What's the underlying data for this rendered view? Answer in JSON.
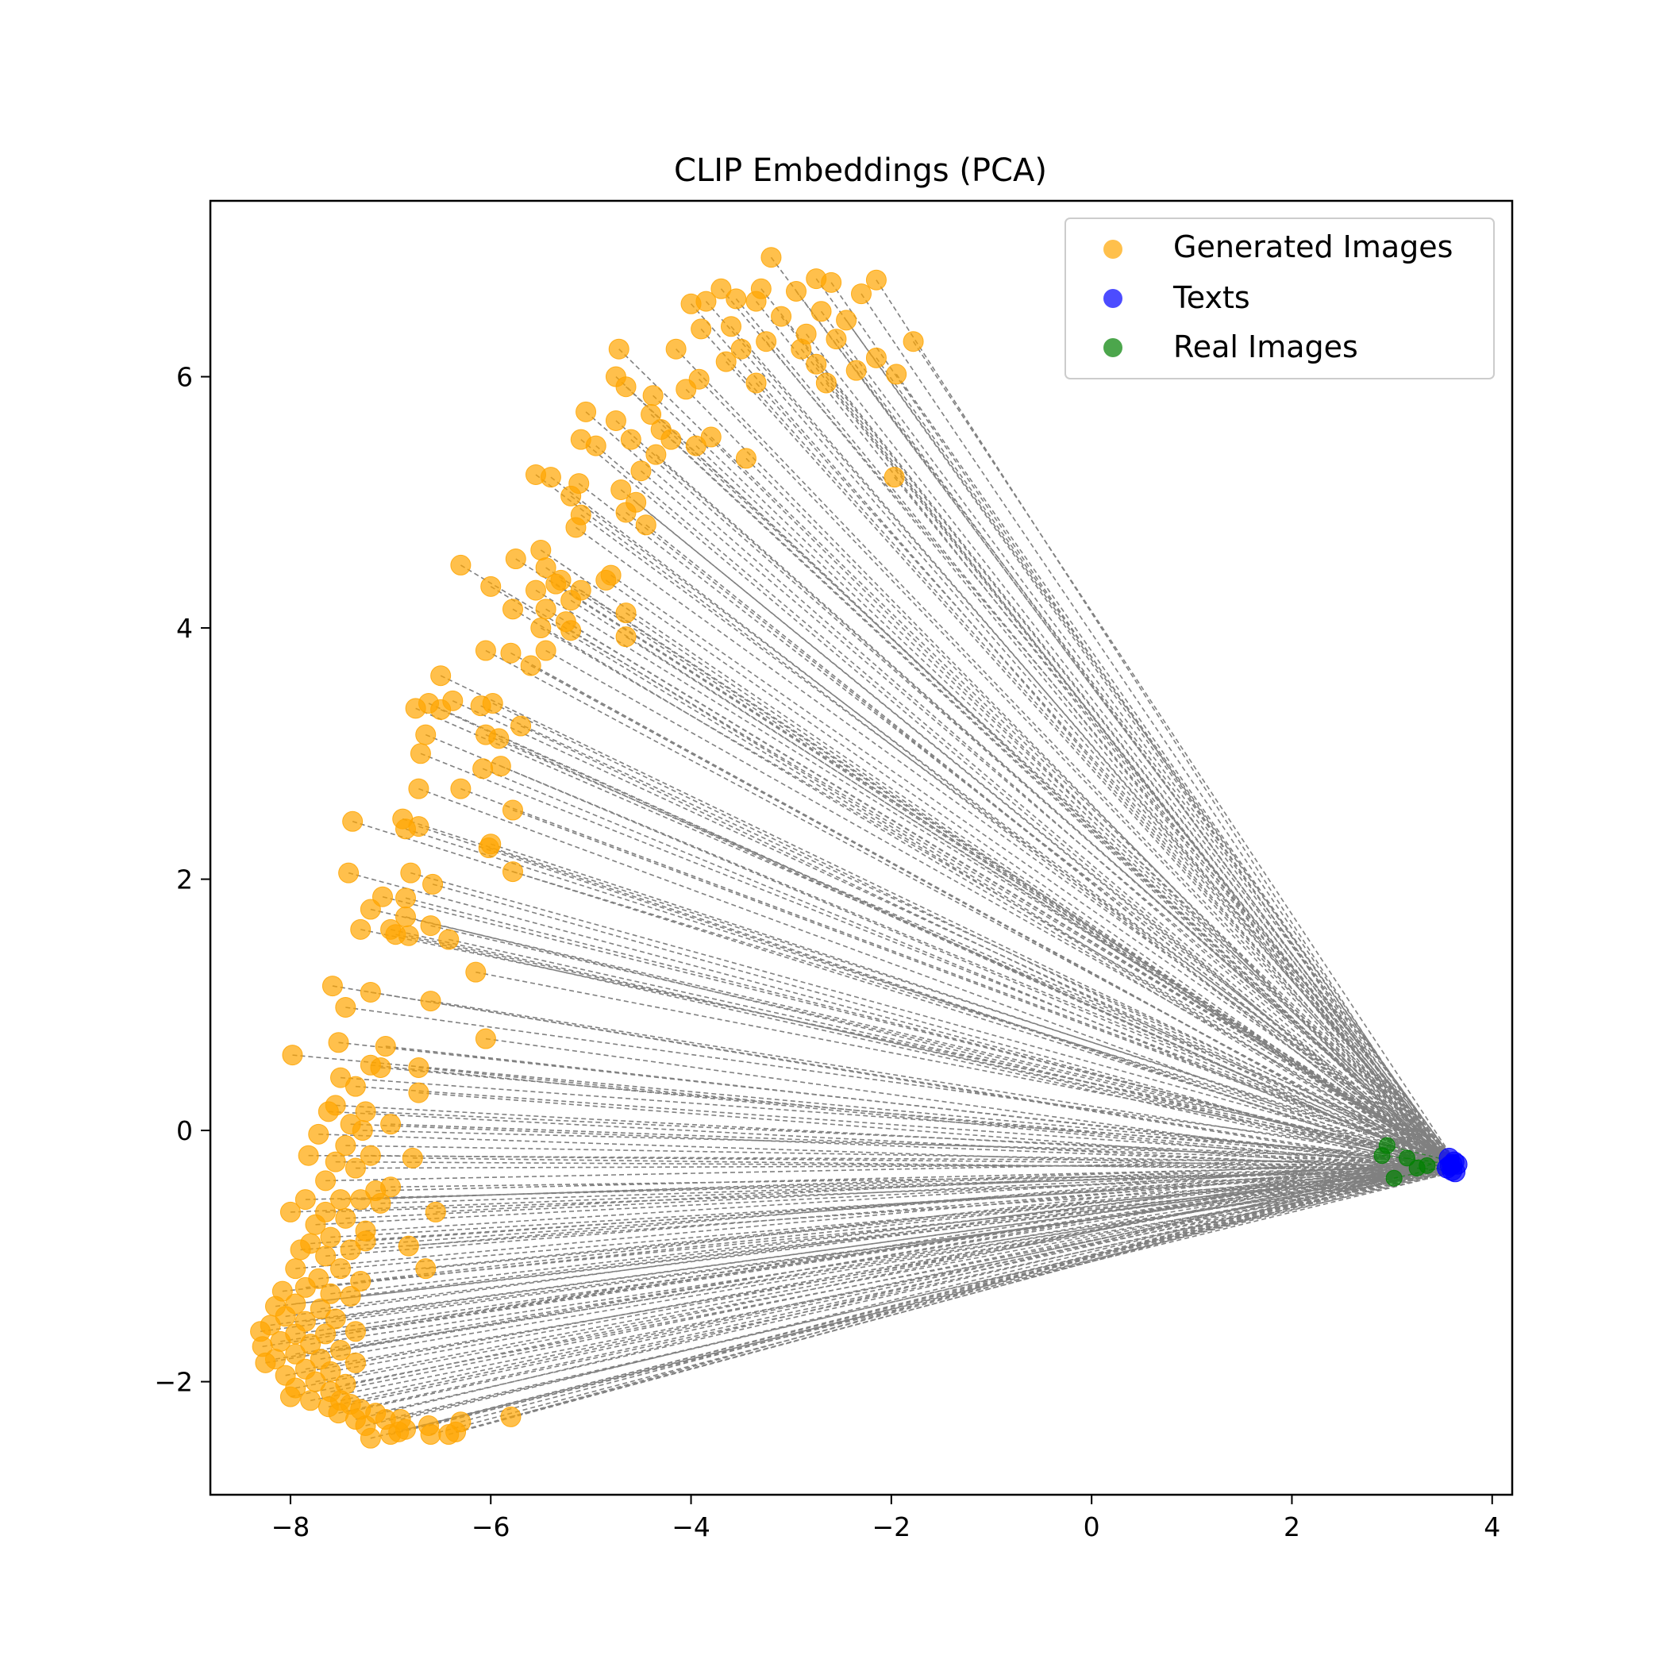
{
  "chart_data": {
    "type": "scatter",
    "title": "CLIP Embeddings (PCA)",
    "xlabel": "",
    "ylabel": "",
    "xlim": [
      -8.8,
      4.2
    ],
    "ylim": [
      -2.9,
      7.4
    ],
    "x_ticks": [
      -8,
      -6,
      -4,
      -2,
      0,
      2,
      4
    ],
    "x_tick_labels": [
      "−8",
      "−6",
      "−4",
      "−2",
      "0",
      "2",
      "4"
    ],
    "y_ticks": [
      -2,
      0,
      2,
      4,
      6
    ],
    "y_tick_labels": [
      "−2",
      "0",
      "2",
      "4",
      "6"
    ],
    "grid": false,
    "legend_position": "upper right",
    "series": [
      {
        "name": "Generated Images",
        "color": "#FFA500",
        "alpha": 0.7,
        "points": [
          [
            -3.2,
            6.95
          ],
          [
            -2.75,
            6.78
          ],
          [
            -2.15,
            6.77
          ],
          [
            -2.6,
            6.75
          ],
          [
            -3.7,
            6.7
          ],
          [
            -3.3,
            6.7
          ],
          [
            -2.95,
            6.68
          ],
          [
            -2.3,
            6.66
          ],
          [
            -3.55,
            6.62
          ],
          [
            -3.85,
            6.6
          ],
          [
            -4.0,
            6.58
          ],
          [
            -3.35,
            6.6
          ],
          [
            -2.7,
            6.52
          ],
          [
            -3.1,
            6.48
          ],
          [
            -2.45,
            6.45
          ],
          [
            -3.6,
            6.4
          ],
          [
            -3.9,
            6.38
          ],
          [
            -2.85,
            6.34
          ],
          [
            -2.55,
            6.3
          ],
          [
            -3.25,
            6.28
          ],
          [
            -1.78,
            6.28
          ],
          [
            -4.15,
            6.22
          ],
          [
            -4.72,
            6.22
          ],
          [
            -3.5,
            6.22
          ],
          [
            -2.9,
            6.22
          ],
          [
            -2.15,
            6.15
          ],
          [
            -3.65,
            6.12
          ],
          [
            -2.75,
            6.1
          ],
          [
            -2.35,
            6.05
          ],
          [
            -1.95,
            6.02
          ],
          [
            -4.75,
            6.0
          ],
          [
            -3.92,
            5.98
          ],
          [
            -2.65,
            5.95
          ],
          [
            -3.35,
            5.95
          ],
          [
            -4.65,
            5.92
          ],
          [
            -4.05,
            5.9
          ],
          [
            -4.38,
            5.85
          ],
          [
            -4.4,
            5.7
          ],
          [
            -5.05,
            5.72
          ],
          [
            -4.75,
            5.65
          ],
          [
            -4.3,
            5.58
          ],
          [
            -3.8,
            5.52
          ],
          [
            -4.2,
            5.5
          ],
          [
            -5.1,
            5.5
          ],
          [
            -4.6,
            5.5
          ],
          [
            -3.95,
            5.45
          ],
          [
            -4.95,
            5.45
          ],
          [
            -4.35,
            5.38
          ],
          [
            -3.45,
            5.35
          ],
          [
            -4.5,
            5.25
          ],
          [
            -5.55,
            5.22
          ],
          [
            -5.4,
            5.2
          ],
          [
            -5.12,
            5.15
          ],
          [
            -1.97,
            5.2
          ],
          [
            -4.7,
            5.1
          ],
          [
            -5.2,
            5.05
          ],
          [
            -4.55,
            5.0
          ],
          [
            -5.1,
            4.9
          ],
          [
            -4.65,
            4.92
          ],
          [
            -4.45,
            4.82
          ],
          [
            -5.15,
            4.8
          ],
          [
            -6.3,
            4.5
          ],
          [
            -5.5,
            4.62
          ],
          [
            -5.75,
            4.55
          ],
          [
            -5.45,
            4.48
          ],
          [
            -4.8,
            4.42
          ],
          [
            -4.85,
            4.38
          ],
          [
            -5.3,
            4.38
          ],
          [
            -5.35,
            4.35
          ],
          [
            -5.55,
            4.3
          ],
          [
            -6.0,
            4.33
          ],
          [
            -5.1,
            4.3
          ],
          [
            -5.2,
            4.22
          ],
          [
            -5.45,
            4.15
          ],
          [
            -5.78,
            4.15
          ],
          [
            -4.65,
            4.12
          ],
          [
            -5.25,
            4.05
          ],
          [
            -5.5,
            4.0
          ],
          [
            -5.2,
            3.98
          ],
          [
            -4.65,
            3.93
          ],
          [
            -6.05,
            3.82
          ],
          [
            -5.45,
            3.82
          ],
          [
            -5.8,
            3.8
          ],
          [
            -5.6,
            3.7
          ],
          [
            -6.5,
            3.62
          ],
          [
            -6.1,
            3.38
          ],
          [
            -6.62,
            3.4
          ],
          [
            -6.38,
            3.42
          ],
          [
            -5.98,
            3.4
          ],
          [
            -6.75,
            3.36
          ],
          [
            -6.5,
            3.35
          ],
          [
            -5.7,
            3.22
          ],
          [
            -6.65,
            3.15
          ],
          [
            -6.05,
            3.15
          ],
          [
            -5.92,
            3.12
          ],
          [
            -6.7,
            3.0
          ],
          [
            -5.9,
            2.9
          ],
          [
            -6.3,
            2.72
          ],
          [
            -6.72,
            2.72
          ],
          [
            -6.08,
            2.88
          ],
          [
            -5.78,
            2.55
          ],
          [
            -6.88,
            2.48
          ],
          [
            -6.72,
            2.42
          ],
          [
            -6.85,
            2.4
          ],
          [
            -7.38,
            2.46
          ],
          [
            -6.0,
            2.28
          ],
          [
            -6.02,
            2.25
          ],
          [
            -7.42,
            2.05
          ],
          [
            -6.8,
            2.05
          ],
          [
            -5.78,
            2.06
          ],
          [
            -6.58,
            1.96
          ],
          [
            -7.08,
            1.86
          ],
          [
            -6.85,
            1.85
          ],
          [
            -7.2,
            1.76
          ],
          [
            -6.85,
            1.7
          ],
          [
            -7.0,
            1.6
          ],
          [
            -6.6,
            1.63
          ],
          [
            -7.3,
            1.6
          ],
          [
            -6.95,
            1.56
          ],
          [
            -6.42,
            1.52
          ],
          [
            -6.82,
            1.55
          ],
          [
            -6.15,
            1.26
          ],
          [
            -7.58,
            1.15
          ],
          [
            -7.2,
            1.1
          ],
          [
            -6.6,
            1.03
          ],
          [
            -7.45,
            0.98
          ],
          [
            -6.05,
            0.73
          ],
          [
            -7.52,
            0.7
          ],
          [
            -7.05,
            0.67
          ],
          [
            -7.98,
            0.6
          ],
          [
            -7.2,
            0.52
          ],
          [
            -6.72,
            0.5
          ],
          [
            -7.1,
            0.5
          ],
          [
            -7.5,
            0.42
          ],
          [
            -6.72,
            0.3
          ],
          [
            -7.35,
            0.35
          ],
          [
            -7.55,
            0.2
          ],
          [
            -7.25,
            0.15
          ],
          [
            -7.62,
            0.15
          ],
          [
            -7.4,
            0.05
          ],
          [
            -7.0,
            0.05
          ],
          [
            -7.28,
            0.0
          ],
          [
            -7.72,
            -0.03
          ],
          [
            -7.45,
            -0.12
          ],
          [
            -7.2,
            -0.2
          ],
          [
            -7.82,
            -0.2
          ],
          [
            -6.78,
            -0.22
          ],
          [
            -7.55,
            -0.25
          ],
          [
            -7.35,
            -0.3
          ],
          [
            -7.65,
            -0.4
          ],
          [
            -7.0,
            -0.45
          ],
          [
            -7.15,
            -0.48
          ],
          [
            -7.5,
            -0.55
          ],
          [
            -7.3,
            -0.55
          ],
          [
            -7.85,
            -0.55
          ],
          [
            -7.1,
            -0.58
          ],
          [
            -8.0,
            -0.65
          ],
          [
            -6.55,
            -0.65
          ],
          [
            -7.65,
            -0.65
          ],
          [
            -7.45,
            -0.7
          ],
          [
            -7.75,
            -0.75
          ],
          [
            -7.25,
            -0.8
          ],
          [
            -7.6,
            -0.85
          ],
          [
            -7.8,
            -0.9
          ],
          [
            -7.25,
            -0.88
          ],
          [
            -6.82,
            -0.92
          ],
          [
            -7.4,
            -0.95
          ],
          [
            -7.9,
            -0.95
          ],
          [
            -7.65,
            -1.0
          ],
          [
            -7.95,
            -1.1
          ],
          [
            -7.5,
            -1.1
          ],
          [
            -6.65,
            -1.1
          ],
          [
            -7.72,
            -1.18
          ],
          [
            -7.3,
            -1.2
          ],
          [
            -7.85,
            -1.25
          ],
          [
            -8.08,
            -1.28
          ],
          [
            -7.6,
            -1.3
          ],
          [
            -7.4,
            -1.32
          ],
          [
            -7.95,
            -1.38
          ],
          [
            -8.15,
            -1.4
          ],
          [
            -7.7,
            -1.42
          ],
          [
            -8.05,
            -1.48
          ],
          [
            -7.55,
            -1.5
          ],
          [
            -7.85,
            -1.52
          ],
          [
            -8.2,
            -1.55
          ],
          [
            -7.35,
            -1.6
          ],
          [
            -8.3,
            -1.6
          ],
          [
            -7.95,
            -1.62
          ],
          [
            -7.65,
            -1.62
          ],
          [
            -8.1,
            -1.68
          ],
          [
            -7.8,
            -1.7
          ],
          [
            -8.28,
            -1.72
          ],
          [
            -7.5,
            -1.75
          ],
          [
            -7.95,
            -1.78
          ],
          [
            -8.15,
            -1.82
          ],
          [
            -7.7,
            -1.82
          ],
          [
            -7.35,
            -1.85
          ],
          [
            -8.25,
            -1.85
          ],
          [
            -7.85,
            -1.9
          ],
          [
            -7.6,
            -1.92
          ],
          [
            -8.05,
            -1.95
          ],
          [
            -7.75,
            -2.0
          ],
          [
            -7.45,
            -2.02
          ],
          [
            -7.95,
            -2.05
          ],
          [
            -7.6,
            -2.08
          ],
          [
            -8.0,
            -2.12
          ],
          [
            -7.8,
            -2.15
          ],
          [
            -7.5,
            -2.15
          ],
          [
            -7.4,
            -2.18
          ],
          [
            -7.62,
            -2.2
          ],
          [
            -7.3,
            -2.22
          ],
          [
            -7.15,
            -2.25
          ],
          [
            -7.52,
            -2.25
          ],
          [
            -7.35,
            -2.3
          ],
          [
            -7.05,
            -2.3
          ],
          [
            -6.9,
            -2.3
          ],
          [
            -5.8,
            -2.28
          ],
          [
            -6.3,
            -2.32
          ],
          [
            -7.25,
            -2.35
          ],
          [
            -6.62,
            -2.35
          ],
          [
            -6.85,
            -2.38
          ],
          [
            -6.35,
            -2.4
          ],
          [
            -7.0,
            -2.42
          ],
          [
            -6.42,
            -2.42
          ],
          [
            -6.6,
            -2.42
          ],
          [
            -6.92,
            -2.4
          ],
          [
            -7.2,
            -2.45
          ]
        ]
      },
      {
        "name": "Texts",
        "color": "#0000FF",
        "alpha": 0.7,
        "points": [
          [
            3.58,
            -0.28
          ],
          [
            3.62,
            -0.25
          ],
          [
            3.6,
            -0.32
          ],
          [
            3.55,
            -0.3
          ],
          [
            3.65,
            -0.27
          ],
          [
            3.57,
            -0.22
          ],
          [
            3.63,
            -0.33
          ],
          [
            3.6,
            -0.27
          ]
        ]
      },
      {
        "name": "Real Images",
        "color": "#008000",
        "alpha": 0.7,
        "points": [
          [
            3.02,
            -0.38
          ],
          [
            2.95,
            -0.12
          ],
          [
            3.25,
            -0.3
          ],
          [
            3.15,
            -0.22
          ],
          [
            2.9,
            -0.2
          ],
          [
            3.35,
            -0.28
          ]
        ]
      }
    ],
    "connections": {
      "description_visible": false,
      "color": "#808080",
      "style": "dashed"
    }
  }
}
